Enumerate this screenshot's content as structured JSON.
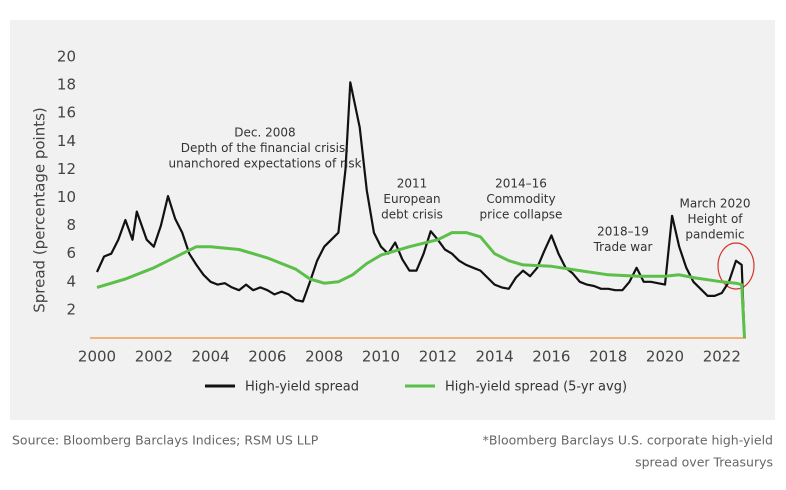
{
  "chart_data": {
    "type": "line",
    "ylabel": "Spread (percentage points)",
    "xlim": [
      2000,
      2023
    ],
    "ylim": [
      0,
      20
    ],
    "xticks": [
      2000,
      2002,
      2004,
      2006,
      2008,
      2010,
      2012,
      2014,
      2016,
      2018,
      2020,
      2022
    ],
    "yticks": [
      2,
      4,
      6,
      8,
      10,
      12,
      14,
      16,
      18,
      20
    ],
    "baseline_color": "#f0a050",
    "legend": "bottom",
    "series": [
      {
        "name": "High-yield spread",
        "color": "#111111",
        "x": [
          2000,
          2000.25,
          2000.5,
          2000.75,
          2001,
          2001.25,
          2001.4,
          2001.75,
          2002,
          2002.25,
          2002.5,
          2002.75,
          2003,
          2003.25,
          2003.5,
          2003.75,
          2004,
          2004.25,
          2004.5,
          2004.75,
          2005,
          2005.25,
          2005.5,
          2005.75,
          2006,
          2006.25,
          2006.5,
          2006.75,
          2007,
          2007.25,
          2007.5,
          2007.75,
          2008,
          2008.25,
          2008.5,
          2008.75,
          2008.92,
          2009.25,
          2009.5,
          2009.75,
          2010,
          2010.25,
          2010.5,
          2010.75,
          2011,
          2011.25,
          2011.5,
          2011.75,
          2012,
          2012.25,
          2012.5,
          2012.75,
          2013,
          2013.25,
          2013.5,
          2013.75,
          2014,
          2014.25,
          2014.5,
          2014.75,
          2015,
          2015.25,
          2015.5,
          2015.75,
          2016,
          2016.25,
          2016.5,
          2016.75,
          2017,
          2017.25,
          2017.5,
          2017.75,
          2018,
          2018.25,
          2018.5,
          2018.75,
          2019,
          2019.25,
          2019.5,
          2019.75,
          2020,
          2020.25,
          2020.5,
          2020.75,
          2021,
          2021.25,
          2021.5,
          2021.75,
          2022,
          2022.25,
          2022.5,
          2022.7,
          2022.8
        ],
        "values": [
          4.7,
          5.8,
          6.0,
          7.0,
          8.4,
          7.0,
          9.0,
          7.0,
          6.5,
          8.0,
          10.1,
          8.5,
          7.5,
          6.0,
          5.2,
          4.5,
          4.0,
          3.8,
          3.9,
          3.6,
          3.4,
          3.8,
          3.4,
          3.6,
          3.4,
          3.1,
          3.3,
          3.1,
          2.7,
          2.6,
          4.0,
          5.5,
          6.5,
          7.0,
          7.5,
          12.0,
          18.2,
          15.0,
          10.5,
          7.5,
          6.5,
          6.0,
          6.8,
          5.6,
          4.8,
          4.8,
          6.0,
          7.6,
          7.0,
          6.3,
          6.0,
          5.5,
          5.2,
          5.0,
          4.8,
          4.3,
          3.8,
          3.6,
          3.5,
          4.3,
          4.8,
          4.4,
          5.0,
          6.2,
          7.3,
          6.0,
          5.0,
          4.6,
          4.0,
          3.8,
          3.7,
          3.5,
          3.5,
          3.4,
          3.4,
          4.0,
          5.0,
          4.0,
          4.0,
          3.9,
          3.8,
          8.7,
          6.5,
          5.0,
          4.0,
          3.5,
          3.0,
          3.0,
          3.2,
          4.0,
          5.5,
          5.2,
          0
        ]
      },
      {
        "name": "High-yield spread (5-yr avg)",
        "color": "#5cbf4a",
        "x": [
          2000,
          2001,
          2002,
          2003,
          2003.5,
          2004,
          2005,
          2006,
          2007,
          2007.5,
          2008,
          2008.5,
          2009,
          2009.5,
          2010,
          2011,
          2012,
          2012.5,
          2013,
          2013.5,
          2014,
          2014.5,
          2015,
          2016,
          2017,
          2018,
          2019,
          2020,
          2020.5,
          2021,
          2022,
          2022.5,
          2022.7,
          2022.8
        ],
        "values": [
          3.6,
          4.2,
          5.0,
          6.0,
          6.5,
          6.5,
          6.3,
          5.7,
          4.9,
          4.2,
          3.9,
          4.0,
          4.5,
          5.3,
          5.9,
          6.5,
          7.0,
          7.5,
          7.5,
          7.2,
          6.0,
          5.5,
          5.2,
          5.1,
          4.8,
          4.5,
          4.4,
          4.4,
          4.5,
          4.3,
          4.0,
          3.9,
          3.8,
          0
        ]
      }
    ],
    "annotations": [
      {
        "lines": [
          "Dec. 2008",
          "Depth of the financial crisis:",
          "unanchored expectations of risk"
        ]
      },
      {
        "lines": [
          "2011",
          "European",
          "debt crisis"
        ]
      },
      {
        "lines": [
          "2014–16",
          "Commodity",
          "price collapse"
        ]
      },
      {
        "lines": [
          "2018–19",
          "Trade war"
        ]
      },
      {
        "lines": [
          "March 2020",
          "Height of",
          "pandemic"
        ]
      }
    ],
    "source": "Source: Bloomberg Barclays Indices; RSM US  LLP",
    "footnote": [
      "*Bloomberg Barclays U.S. corporate high-yield",
      "spread over Treasurys"
    ]
  }
}
